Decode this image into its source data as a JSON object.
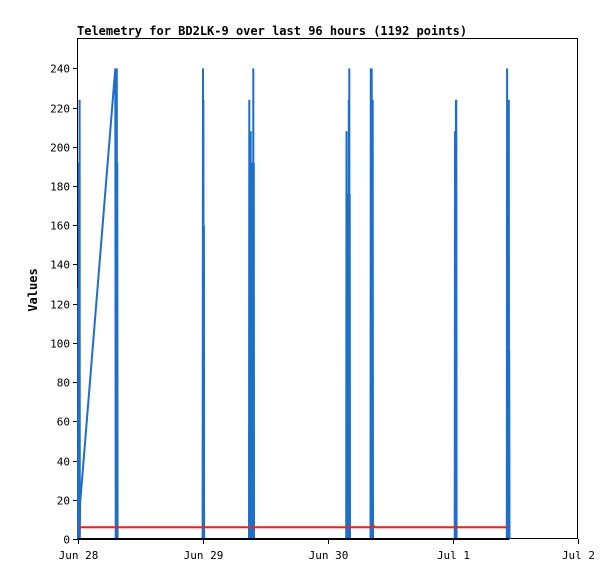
{
  "chart_data": {
    "type": "line",
    "title": "Telemetry for BD2LK-9 over last 96 hours (1192 points)",
    "xlabel": "",
    "ylabel": "Values",
    "x_ticks": [
      "Jun 28",
      "Jun 29",
      "Jun 30",
      "Jul 1",
      "Jul 2"
    ],
    "y_ticks": [
      0,
      20,
      40,
      60,
      80,
      100,
      120,
      140,
      160,
      180,
      200,
      220,
      240
    ],
    "xlim": [
      "Jun 28 00:00",
      "Jul 2 00:00"
    ],
    "ylim": [
      0,
      255
    ],
    "grid": false,
    "legend": "none",
    "colors": {
      "blue_series": "#1e6fcc",
      "red_series": "#e8231e",
      "black_series": "#000000"
    },
    "series": [
      {
        "color": "blue",
        "segments": [
          [
            [
              "Jun 28 00:00",
              0
            ],
            [
              "Jun 28 00:04",
              128
            ],
            [
              "Jun 28 00:07",
              0
            ],
            [
              "Jun 28 00:09",
              192
            ],
            [
              "Jun 28 00:12",
              0
            ],
            [
              "Jun 28 00:14",
              144
            ],
            [
              "Jun 28 00:16",
              0
            ],
            [
              "Jun 28 00:18",
              224
            ],
            [
              "Jun 28 00:21",
              0
            ],
            [
              "Jun 28 00:24",
              18
            ],
            [
              "Jun 28 07:10",
              240
            ],
            [
              "Jun 28 07:14",
              0
            ],
            [
              "Jun 28 07:17",
              240
            ],
            [
              "Jun 28 07:20",
              0
            ],
            [
              "Jun 28 07:22",
              128
            ],
            [
              "Jun 28 07:25",
              0
            ],
            [
              "Jun 28 07:27",
              240
            ],
            [
              "Jun 28 07:30",
              0
            ],
            [
              "Jun 28 07:33",
              192
            ],
            [
              "Jun 28 07:36",
              0
            ]
          ],
          [
            [
              "Jun 28 23:55",
              0
            ],
            [
              "Jun 29 00:00",
              240
            ],
            [
              "Jun 29 00:03",
              0
            ],
            [
              "Jun 29 00:05",
              224
            ],
            [
              "Jun 29 00:08",
              0
            ],
            [
              "Jun 29 00:10",
              160
            ],
            [
              "Jun 29 00:13",
              0
            ]
          ],
          [
            [
              "Jun 29 08:50",
              0
            ],
            [
              "Jun 29 08:53",
              224
            ],
            [
              "Jun 29 08:56",
              0
            ],
            [
              "Jun 29 08:59",
              32
            ],
            [
              "Jun 29 09:02",
              0
            ],
            [
              "Jun 29 09:05",
              64
            ],
            [
              "Jun 29 09:08",
              0
            ],
            [
              "Jun 29 09:10",
              208
            ],
            [
              "Jun 29 09:13",
              0
            ],
            [
              "Jun 29 09:15",
              176
            ],
            [
              "Jun 29 09:18",
              0
            ],
            [
              "Jun 29 09:20",
              104
            ],
            [
              "Jun 29 09:23",
              0
            ],
            [
              "Jun 29 09:25",
              80
            ],
            [
              "Jun 29 09:27",
              0
            ],
            [
              "Jun 29 09:30",
              192
            ],
            [
              "Jun 29 09:33",
              0
            ],
            [
              "Jun 29 09:35",
              160
            ],
            [
              "Jun 29 09:38",
              0
            ],
            [
              "Jun 29 09:40",
              240
            ],
            [
              "Jun 29 09:43",
              0
            ],
            [
              "Jun 29 09:45",
              192
            ],
            [
              "Jun 29 09:48",
              0
            ]
          ],
          [
            [
              "Jun 30 03:30",
              0
            ],
            [
              "Jun 30 03:33",
              208
            ],
            [
              "Jun 30 03:36",
              0
            ],
            [
              "Jun 30 03:38",
              176
            ],
            [
              "Jun 30 03:40",
              0
            ],
            [
              "Jun 30 03:42",
              112
            ],
            [
              "Jun 30 03:45",
              0
            ],
            [
              "Jun 30 03:47",
              32
            ],
            [
              "Jun 30 03:55",
              32
            ],
            [
              "Jun 30 03:57",
              0
            ],
            [
              "Jun 30 04:00",
              224
            ],
            [
              "Jun 30 04:03",
              0
            ],
            [
              "Jun 30 04:05",
              240
            ],
            [
              "Jun 30 04:08",
              0
            ],
            [
              "Jun 30 04:10",
              176
            ],
            [
              "Jun 30 04:13",
              0
            ]
          ],
          [
            [
              "Jun 30 08:10",
              0
            ],
            [
              "Jun 30 08:13",
              240
            ],
            [
              "Jun 30 08:16",
              0
            ],
            [
              "Jun 30 08:18",
              176
            ],
            [
              "Jun 30 08:21",
              0
            ],
            [
              "Jun 30 08:24",
              240
            ],
            [
              "Jun 30 08:27",
              0
            ],
            [
              "Jun 30 08:29",
              64
            ],
            [
              "Jun 30 08:32",
              0
            ],
            [
              "Jun 30 08:35",
              224
            ],
            [
              "Jun 30 08:38",
              0
            ],
            [
              "Jun 30 08:45",
              0
            ]
          ],
          [
            [
              "Jul 1 00:20",
              0
            ],
            [
              "Jul 1 00:23",
              208
            ],
            [
              "Jul 1 00:26",
              0
            ],
            [
              "Jul 1 00:28",
              112
            ],
            [
              "Jul 1 00:31",
              0
            ],
            [
              "Jul 1 00:33",
              224
            ],
            [
              "Jul 1 00:36",
              0
            ],
            [
              "Jul 1 00:38",
              224
            ],
            [
              "Jul 1 00:41",
              0
            ]
          ],
          [
            [
              "Jul 1 10:20",
              0
            ],
            [
              "Jul 1 10:23",
              240
            ],
            [
              "Jul 1 10:26",
              0
            ],
            [
              "Jul 1 10:28",
              224
            ],
            [
              "Jul 1 10:31",
              0
            ],
            [
              "Jul 1 10:33",
              112
            ],
            [
              "Jul 1 10:36",
              0
            ],
            [
              "Jul 1 10:38",
              224
            ],
            [
              "Jul 1 10:41",
              0
            ],
            [
              "Jul 1 10:43",
              224
            ],
            [
              "Jul 1 10:46",
              0
            ],
            [
              "Jul 1 10:48",
              96
            ],
            [
              "Jul 1 10:51",
              0
            ]
          ]
        ]
      },
      {
        "color": "red",
        "segments": [
          [
            [
              "Jun 28 00:10",
              6
            ],
            [
              "Jun 30 08:15",
              6
            ],
            [
              "Jun 30 08:40",
              7
            ],
            [
              "Jun 30 09:00",
              6
            ],
            [
              "Jul 1 10:30",
              6
            ]
          ]
        ]
      },
      {
        "color": "black",
        "segments": [
          [
            [
              "Jun 28 00:00",
              0
            ],
            [
              "Jul 1 10:50",
              0
            ]
          ]
        ]
      }
    ]
  }
}
